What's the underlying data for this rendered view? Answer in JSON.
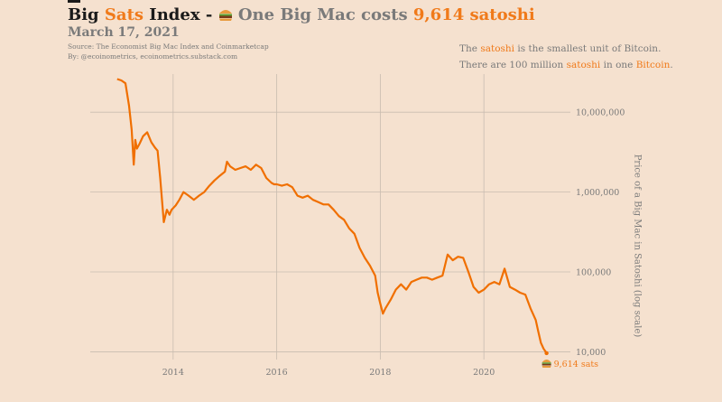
{
  "header": {
    "title_part1": "Big ",
    "title_accent": "Sats",
    "title_part2": " Index - ",
    "title_part3": " One Big Mac costs ",
    "title_value": "9,614 satoshi",
    "date": "March 17, 2021",
    "source_line1": "Source: The Economist Big Mac Index and Coinmarketcap",
    "source_line2": "By: @ecoinometrics, ecoinometrics.substack.com"
  },
  "note": {
    "line1_pre": "The ",
    "line1_accent": "satoshi",
    "line1_post": " is the smallest unit of Bitcoin.",
    "line2_pre": "There are 100 million ",
    "line2_accent": "satoshi",
    "line2_mid": " in one ",
    "line2_accent2": "Bitcoin",
    "line2_post": "."
  },
  "colors": {
    "accent": "#f07a1a",
    "line": "#f06f00",
    "grid": "#c9bcb0",
    "text_grey": "#7a7a7a",
    "background": "#f5e1cf"
  },
  "icons": {
    "burger": "burger-icon"
  },
  "chart_data": {
    "type": "line",
    "ylabel": "Price of a Big Mac in Satoshi (log scale)",
    "y_scale": "log",
    "ylim": [
      8000,
      30000000
    ],
    "xlim": [
      2012.4,
      2021.6
    ],
    "x_ticks": [
      2014,
      2016,
      2018,
      2020
    ],
    "x_tick_labels": [
      "2014",
      "2016",
      "2018",
      "2020"
    ],
    "y_ticks": [
      10000,
      100000,
      1000000,
      10000000
    ],
    "y_tick_labels": [
      "10,000",
      "100,000",
      "1,000,000",
      "10,000,000"
    ],
    "grid": true,
    "end_label": "9,614 sats",
    "series": [
      {
        "x": [
          2012.92,
          2013.0,
          2013.08,
          2013.15,
          2013.2,
          2013.24,
          2013.27,
          2013.3,
          2013.35,
          2013.42,
          2013.5,
          2013.58,
          2013.65,
          2013.7,
          2013.75,
          2013.82,
          2013.88,
          2013.93,
          2013.97,
          2014.05,
          2014.12,
          2014.2,
          2014.3,
          2014.4,
          2014.5,
          2014.6,
          2014.7,
          2014.8,
          2014.9,
          2015.0,
          2015.04,
          2015.1,
          2015.2,
          2015.3,
          2015.4,
          2015.5,
          2015.6,
          2015.7,
          2015.8,
          2015.9,
          2015.95,
          2016.0,
          2016.1,
          2016.2,
          2016.3,
          2016.4,
          2016.5,
          2016.6,
          2016.7,
          2016.8,
          2016.9,
          2017.0,
          2017.1,
          2017.2,
          2017.3,
          2017.4,
          2017.5,
          2017.6,
          2017.7,
          2017.8,
          2017.9,
          2017.95,
          2018.0,
          2018.05,
          2018.1,
          2018.2,
          2018.3,
          2018.4,
          2018.5,
          2018.6,
          2018.7,
          2018.8,
          2018.9,
          2019.0,
          2019.1,
          2019.2,
          2019.3,
          2019.4,
          2019.5,
          2019.6,
          2019.7,
          2019.8,
          2019.9,
          2020.0,
          2020.1,
          2020.2,
          2020.3,
          2020.4,
          2020.5,
          2020.6,
          2020.7,
          2020.8,
          2020.9,
          2021.0,
          2021.05,
          2021.1,
          2021.15,
          2021.21
        ],
        "values": [
          26000000,
          25000000,
          23000000,
          12000000,
          6000000,
          2200000,
          4500000,
          3500000,
          4000000,
          5000000,
          5600000,
          4200000,
          3600000,
          3300000,
          1500000,
          420000,
          600000,
          520000,
          600000,
          680000,
          800000,
          1000000,
          900000,
          800000,
          900000,
          1000000,
          1200000,
          1400000,
          1600000,
          1800000,
          2400000,
          2100000,
          1900000,
          2000000,
          2100000,
          1900000,
          2200000,
          2000000,
          1500000,
          1300000,
          1250000,
          1250000,
          1200000,
          1250000,
          1150000,
          900000,
          850000,
          900000,
          800000,
          750000,
          700000,
          700000,
          600000,
          500000,
          450000,
          350000,
          300000,
          200000,
          150000,
          120000,
          90000,
          55000,
          40000,
          30000,
          35000,
          45000,
          60000,
          70000,
          60000,
          75000,
          80000,
          85000,
          85000,
          80000,
          85000,
          90000,
          165000,
          140000,
          155000,
          150000,
          100000,
          65000,
          55000,
          60000,
          70000,
          75000,
          70000,
          110000,
          65000,
          60000,
          55000,
          52000,
          35000,
          25000,
          18000,
          13000,
          11000,
          9614
        ]
      }
    ]
  }
}
